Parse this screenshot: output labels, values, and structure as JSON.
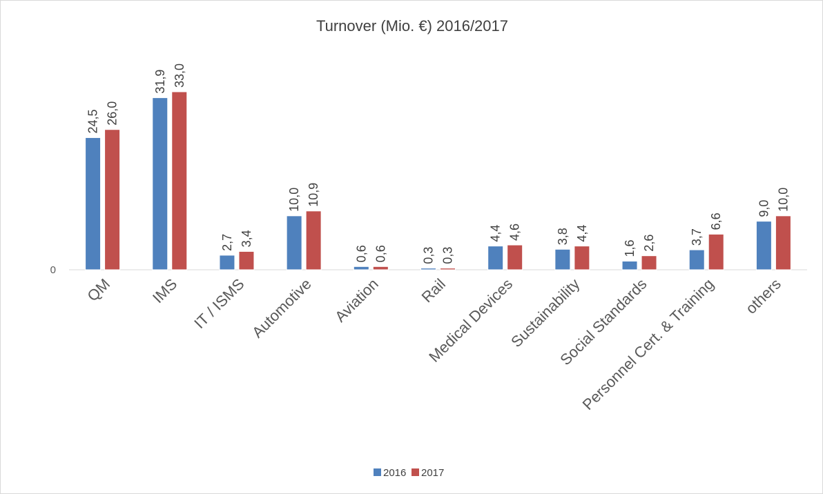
{
  "chart_data": {
    "type": "bar",
    "title": "Turnover (Mio. €) 2016/2017",
    "categories": [
      "QM",
      "IMS",
      "IT / ISMS",
      "Automotive",
      "Aviation",
      "Rail",
      "Medical Devices",
      "Sustainability",
      "Social Standards",
      "Personnel Cert. & Training",
      "others"
    ],
    "series": [
      {
        "name": "2016",
        "color": "#4f81bd",
        "values": [
          24.5,
          31.9,
          2.7,
          10.0,
          0.6,
          0.3,
          4.4,
          3.8,
          1.6,
          3.7,
          9.0
        ],
        "labels": [
          "24,5",
          "31,9",
          "2,7",
          "10,0",
          "0,6",
          "0,3",
          "4,4",
          "3,8",
          "1,6",
          "3,7",
          "9,0"
        ]
      },
      {
        "name": "2017",
        "color": "#c0504d",
        "values": [
          26.0,
          33.0,
          3.4,
          10.9,
          0.6,
          0.3,
          4.6,
          4.4,
          2.6,
          6.6,
          10.0
        ],
        "labels": [
          "26,0",
          "33,0",
          "3,4",
          "10,9",
          "0,6",
          "0,3",
          "4,6",
          "4,4",
          "2,6",
          "6,6",
          "10,0"
        ]
      }
    ],
    "y_tick_labels": [
      "0"
    ],
    "ylim": [
      0,
      33
    ],
    "grid": false,
    "legend_position": "bottom"
  }
}
